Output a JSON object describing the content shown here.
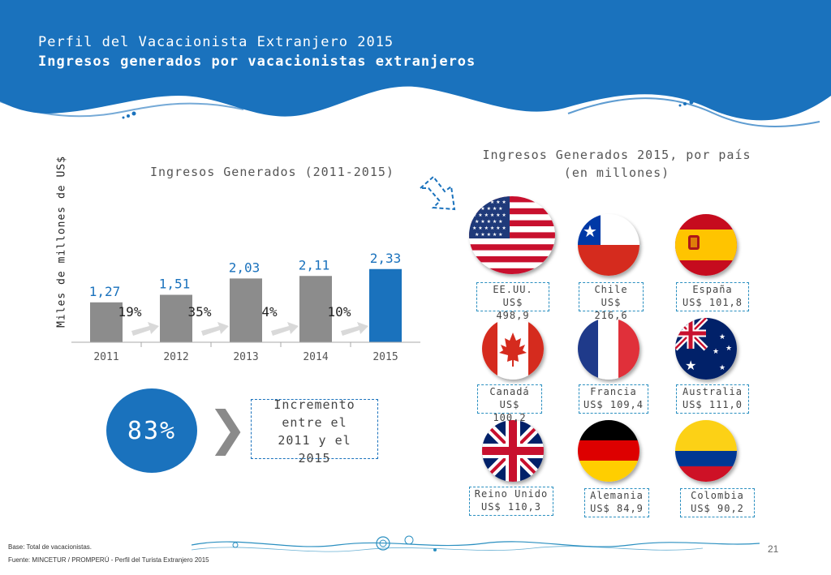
{
  "header": {
    "title_line1": "Perfil del Vacacionista Extranjero 2015",
    "title_line2": "Ingresos generados por vacacionistas extranjeros",
    "colors": {
      "primary": "#1a72bd",
      "accent": "#2a8fc0"
    }
  },
  "chart_data": {
    "type": "bar",
    "title": "Ingresos Generados (2011-2015)",
    "xlabel": "",
    "ylabel": "Miles de millones de US$",
    "categories": [
      "2011",
      "2012",
      "2013",
      "2014",
      "2015"
    ],
    "values": [
      1.27,
      1.51,
      2.03,
      2.11,
      2.33
    ],
    "value_labels": [
      "1,27",
      "1,51",
      "2,03",
      "2,11",
      "2,33"
    ],
    "growth_labels": [
      "19%",
      "35%",
      "4%",
      "10%"
    ],
    "bar_colors": [
      "#8c8c8c",
      "#8c8c8c",
      "#8c8c8c",
      "#8c8c8c",
      "#1a72bd"
    ],
    "value_label_color": "#1a72bd",
    "ylim": [
      0,
      2.6
    ],
    "grid": false,
    "legend": "none"
  },
  "summary": {
    "percent": "83%",
    "text_lines": [
      "Incremento",
      "entre el",
      "2011 y el",
      "2015"
    ]
  },
  "countries": {
    "title_line1": "Ingresos Generados 2015, por país",
    "title_line2": "(en millones)",
    "items": [
      {
        "flag": "usa-flag-icon",
        "line1": "EE.UU.",
        "line2": "US$",
        "line3": "498,9"
      },
      {
        "flag": "chile-flag-icon",
        "line1": "Chile",
        "line2": "US$",
        "line3": "216,6"
      },
      {
        "flag": "spain-flag-icon",
        "line1": "España",
        "line2": "US$ 101,8",
        "line3": ""
      },
      {
        "flag": "canada-flag-icon",
        "line1": "Canadá",
        "line2": "US$",
        "line3": "100,2"
      },
      {
        "flag": "france-flag-icon",
        "line1": "Francia",
        "line2": "US$ 109,4",
        "line3": ""
      },
      {
        "flag": "australia-flag-icon",
        "line1": "Australia",
        "line2": "US$ 111,0",
        "line3": ""
      },
      {
        "flag": "uk-flag-icon",
        "line1": "Reino Unido",
        "line2": "US$ 110,3",
        "line3": ""
      },
      {
        "flag": "germany-flag-icon",
        "line1": "Alemania",
        "line2": "US$ 84,9",
        "line3": ""
      },
      {
        "flag": "colombia-flag-icon",
        "line1": "Colombia",
        "line2": "US$ 90,2",
        "line3": ""
      }
    ]
  },
  "footer": {
    "base": "Base: Total de vacacionistas.",
    "source": "Fuente: MINCETUR / PROMPERÚ - Perfil del Turista Extranjero 2015",
    "page_number": "21"
  }
}
